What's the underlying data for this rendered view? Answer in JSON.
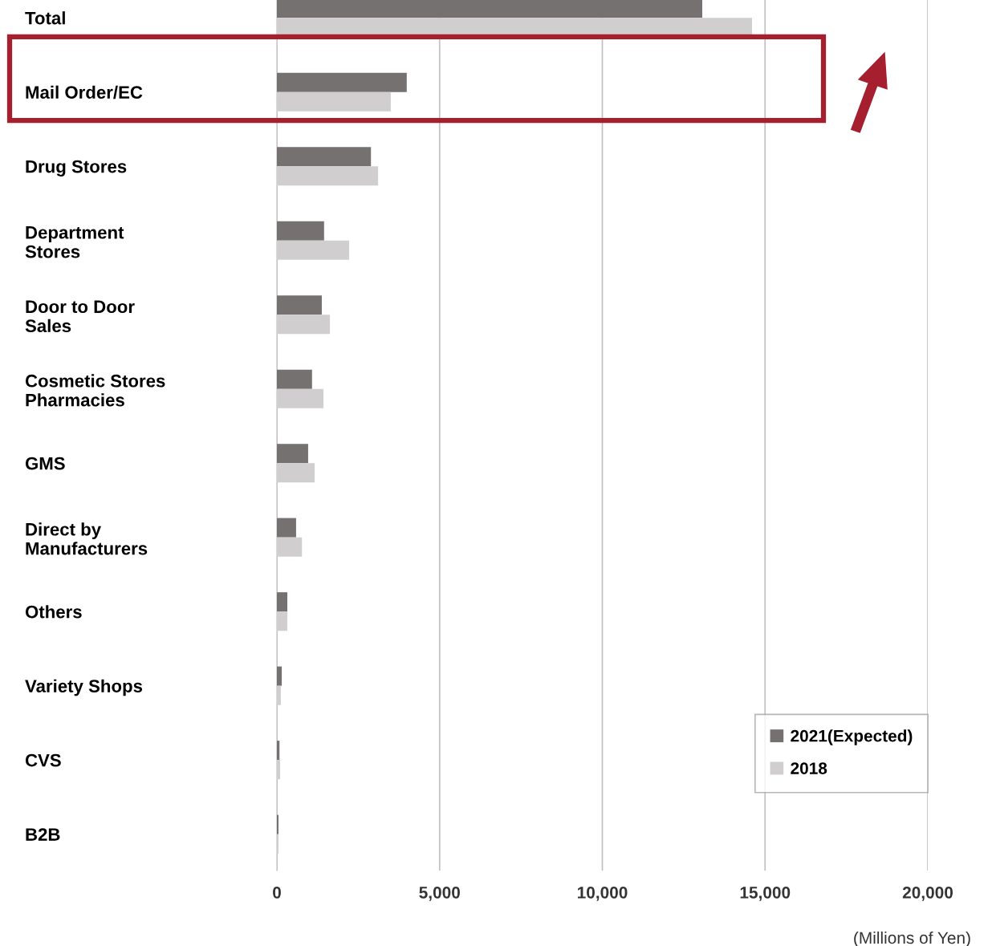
{
  "chart_data": {
    "type": "bar",
    "orientation": "horizontal",
    "xlabel": "(Millions of Yen)",
    "categories": [
      "Total",
      "Mail Order/EC",
      "Drug Stores",
      "Department\nStores",
      "Door to Door\nSales",
      "Cosmetic Stores\nPharmacies",
      "GMS",
      "Direct by\nManufacturers",
      "Others",
      "Variety Shops",
      "CVS",
      "B2B"
    ],
    "series": [
      {
        "name": "2021(Expected)",
        "color": "#767171",
        "values": [
          13070,
          3990,
          2890,
          1450,
          1380,
          1080,
          960,
          590,
          320,
          150,
          80,
          50
        ]
      },
      {
        "name": "2018",
        "color": "#d0cece",
        "values": [
          14600,
          3500,
          3110,
          2220,
          1630,
          1430,
          1160,
          770,
          320,
          120,
          100,
          50
        ]
      }
    ],
    "xlim": [
      0,
      20000
    ],
    "xticks": [
      0,
      {
        "value": 5000,
        "label": "5,000"
      },
      {
        "value": 10000,
        "label": "10,000"
      },
      {
        "value": 15000,
        "label": "15,000"
      },
      {
        "value": 20000,
        "label": "20,000"
      }
    ],
    "grid": "x",
    "legend": "bottom right"
  }
}
